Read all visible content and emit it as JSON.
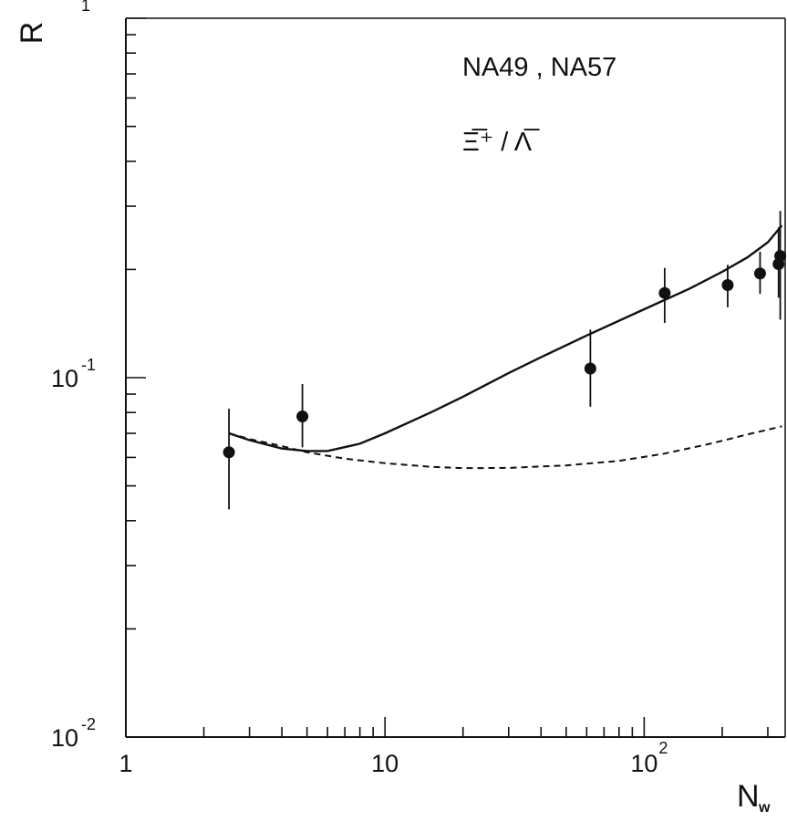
{
  "chart_data": {
    "type": "scatter",
    "x_scale": "log",
    "y_scale": "log",
    "xlim": [
      1,
      350
    ],
    "ylim": [
      0.01,
      1
    ],
    "xlabel": {
      "main": "N",
      "subscript": "w"
    },
    "ylabel": "R",
    "x_ticks": [
      {
        "value": 1,
        "base": "1",
        "exponent": ""
      },
      {
        "value": 10,
        "base": "10",
        "exponent": ""
      },
      {
        "value": 100,
        "base": "10",
        "exponent": "2"
      }
    ],
    "y_ticks": [
      {
        "value": 1,
        "base": "",
        "exponent": "1"
      },
      {
        "value": 0.1,
        "base": "10",
        "exponent": "-1"
      },
      {
        "value": 0.01,
        "base": "10",
        "exponent": "-2"
      }
    ],
    "annotations": [
      "NA49 , NA57",
      "Ξ̅⁺ / Λ̅"
    ],
    "grid": false,
    "series": [
      {
        "kind": "points",
        "points": [
          {
            "x": 2.5,
            "y": 0.062,
            "ylo": 0.043,
            "yhi": 0.082
          },
          {
            "x": 4.8,
            "y": 0.078,
            "ylo": 0.064,
            "yhi": 0.096
          },
          {
            "x": 62,
            "y": 0.106,
            "ylo": 0.083,
            "yhi": 0.136
          },
          {
            "x": 120,
            "y": 0.172,
            "ylo": 0.142,
            "yhi": 0.202
          },
          {
            "x": 210,
            "y": 0.181,
            "ylo": 0.157,
            "yhi": 0.206
          },
          {
            "x": 280,
            "y": 0.195,
            "ylo": 0.171,
            "yhi": 0.224
          },
          {
            "x": 330,
            "y": 0.207,
            "ylo": 0.167,
            "yhi": 0.262
          },
          {
            "x": 335,
            "y": 0.218,
            "ylo": 0.145,
            "yhi": 0.291
          }
        ]
      },
      {
        "kind": "line",
        "style": "solid",
        "points": [
          [
            2.5,
            0.07
          ],
          [
            3,
            0.067
          ],
          [
            4,
            0.0635
          ],
          [
            5,
            0.0625
          ],
          [
            6,
            0.0625
          ],
          [
            8,
            0.0655
          ],
          [
            10,
            0.07
          ],
          [
            15,
            0.08
          ],
          [
            20,
            0.0885
          ],
          [
            30,
            0.103
          ],
          [
            40,
            0.114
          ],
          [
            60,
            0.131
          ],
          [
            100,
            0.155
          ],
          [
            150,
            0.177
          ],
          [
            200,
            0.197
          ],
          [
            250,
            0.216
          ],
          [
            300,
            0.238
          ],
          [
            340,
            0.265
          ]
        ]
      },
      {
        "kind": "line",
        "style": "dashed",
        "points": [
          [
            2.5,
            0.07
          ],
          [
            3,
            0.0675
          ],
          [
            4,
            0.0645
          ],
          [
            5,
            0.062
          ],
          [
            7,
            0.0595
          ],
          [
            10,
            0.0578
          ],
          [
            15,
            0.0565
          ],
          [
            20,
            0.056
          ],
          [
            30,
            0.0561
          ],
          [
            50,
            0.057
          ],
          [
            80,
            0.0587
          ],
          [
            120,
            0.0615
          ],
          [
            180,
            0.0655
          ],
          [
            250,
            0.0695
          ],
          [
            340,
            0.0732
          ]
        ]
      }
    ]
  }
}
